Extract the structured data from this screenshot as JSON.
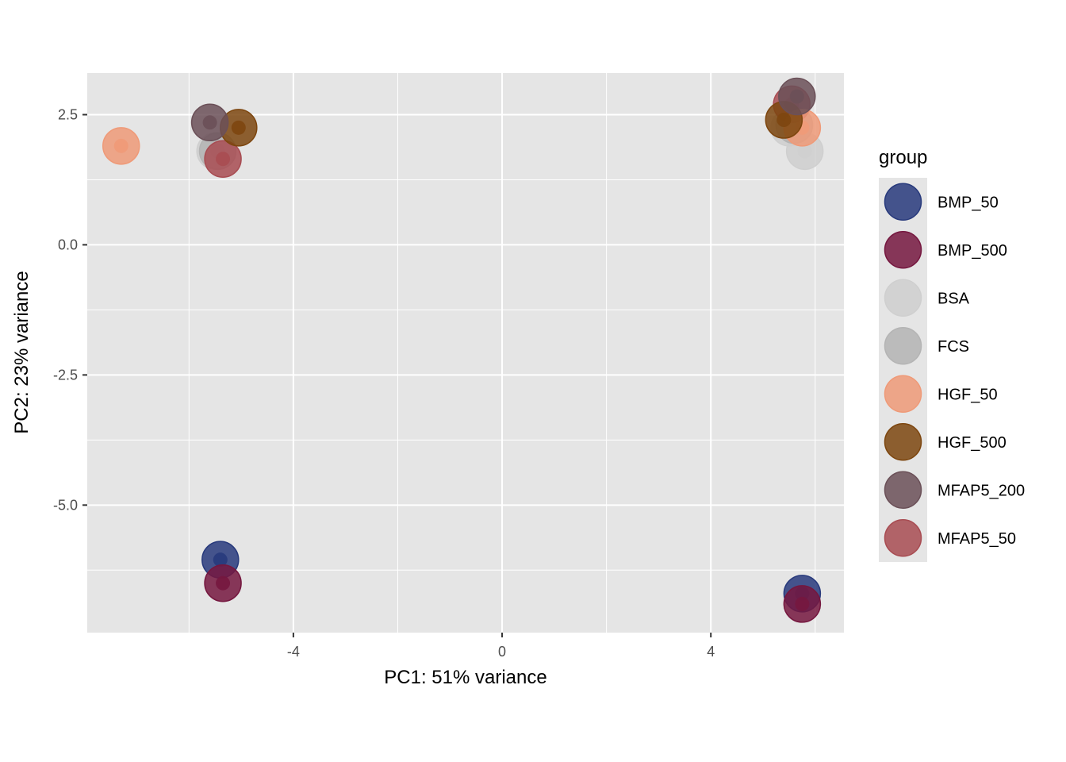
{
  "chart_data": {
    "type": "scatter",
    "xlabel": "PC1: 51% variance",
    "ylabel": "PC2: 23% variance",
    "xlim": [
      -7.95,
      6.55
    ],
    "ylim": [
      -7.45,
      3.3
    ],
    "x_ticks": [
      -4,
      0,
      4
    ],
    "x_tick_labels": [
      "-4",
      "0",
      "4"
    ],
    "y_ticks": [
      2.5,
      0.0,
      -2.5,
      -5.0
    ],
    "y_tick_labels": [
      "2.5",
      "0.0",
      "-2.5",
      "-5.0"
    ],
    "grid": true,
    "legend": {
      "title": "group",
      "placement": "right",
      "entries": [
        "BMP_50",
        "BMP_500",
        "BSA",
        "FCS",
        "HGF_50",
        "HGF_500",
        "MFAP5_200",
        "MFAP5_50"
      ]
    },
    "colors": {
      "BMP_50": "#283a7c",
      "BMP_500": "#75173f",
      "BSA": "#cfcfcf",
      "FCS": "#b4b4b4",
      "HGF_50": "#ef9a78",
      "HGF_500": "#7d460f",
      "MFAP5_200": "#6b5058",
      "MFAP5_50": "#a84c52"
    },
    "series": [
      {
        "name": "BSA",
        "points": [
          [
            -5.5,
            1.8
          ],
          [
            5.5,
            2.25
          ],
          [
            5.8,
            1.8
          ]
        ]
      },
      {
        "name": "FCS",
        "points": [
          [
            -5.45,
            1.8
          ],
          [
            5.6,
            2.3
          ]
        ]
      },
      {
        "name": "MFAP5_50",
        "points": [
          [
            -5.35,
            1.65
          ],
          [
            5.55,
            2.7
          ]
        ]
      },
      {
        "name": "HGF_50",
        "points": [
          [
            -7.3,
            1.9
          ],
          [
            5.75,
            2.25
          ]
        ]
      },
      {
        "name": "HGF_500",
        "points": [
          [
            -5.05,
            2.25
          ],
          [
            5.4,
            2.4
          ]
        ]
      },
      {
        "name": "MFAP5_200",
        "points": [
          [
            -5.6,
            2.35
          ],
          [
            5.65,
            2.85
          ]
        ]
      },
      {
        "name": "BMP_50",
        "points": [
          [
            -5.4,
            -6.05
          ],
          [
            5.75,
            -6.7
          ]
        ]
      },
      {
        "name": "BMP_500",
        "points": [
          [
            -5.35,
            -6.5
          ],
          [
            5.75,
            -6.9
          ]
        ]
      }
    ]
  }
}
